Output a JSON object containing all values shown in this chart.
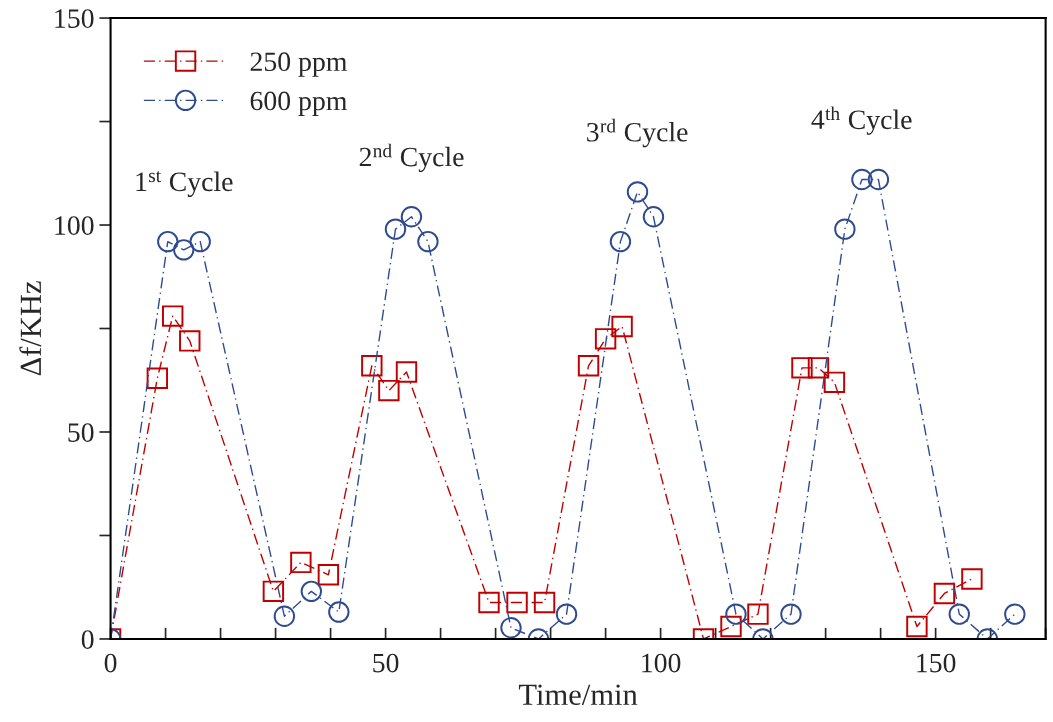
{
  "chart_data": {
    "type": "line",
    "xlabel": "Time/min",
    "ylabel": "Δf/KHz",
    "xlim": [
      0,
      170
    ],
    "ylim": [
      0,
      150
    ],
    "xticks": [
      0,
      {
        "value": 10,
        "label": null
      },
      {
        "value": 20,
        "label": null
      },
      {
        "value": 30,
        "label": null
      },
      {
        "value": 40,
        "label": null
      },
      50,
      {
        "value": 60,
        "label": null
      },
      {
        "value": 70,
        "label": null
      },
      {
        "value": 80,
        "label": null
      },
      {
        "value": 90,
        "label": null
      },
      100,
      {
        "value": 110,
        "label": null
      },
      {
        "value": 120,
        "label": null
      },
      {
        "value": 130,
        "label": null
      },
      {
        "value": 140,
        "label": null
      },
      150,
      {
        "value": 160,
        "label": null
      },
      {
        "value": 170,
        "label": null
      }
    ],
    "yticks": [
      0,
      {
        "value": 25,
        "label": null
      },
      50,
      {
        "value": 75,
        "label": null
      },
      100,
      {
        "value": 125,
        "label": null
      },
      150
    ],
    "grid": false,
    "legend": "top left",
    "line_style": "dashed",
    "series": [
      {
        "name": "250 ppm",
        "color": "#c00000",
        "marker": "square",
        "x": [
          0,
          8.5,
          11.3,
          14.4,
          29.6,
          34.6,
          39.6,
          47.5,
          50.6,
          53.8,
          68.8,
          73.9,
          78.9,
          86.9,
          90.0,
          93.0,
          107.8,
          112.8,
          117.7,
          125.7,
          128.7,
          131.6,
          146.6,
          151.6,
          156.6
        ],
        "values": [
          0,
          63,
          78,
          72,
          11.5,
          18.5,
          15.5,
          66,
          60,
          64.5,
          8.8,
          8.8,
          8.8,
          66,
          72.5,
          75.5,
          0,
          3,
          6,
          65.5,
          65.5,
          62,
          3,
          11,
          14.5
        ]
      },
      {
        "name": "600 ppm",
        "color": "#2f4b8f",
        "marker": "circle",
        "x": [
          0,
          10.4,
          13.3,
          16.3,
          31.6,
          36.5,
          41.5,
          51.8,
          54.7,
          57.7,
          72.8,
          77.8,
          82.9,
          92.7,
          95.8,
          98.7,
          113.7,
          118.6,
          123.7,
          133.5,
          136.6,
          139.6,
          154.3,
          159.4,
          164.4
        ],
        "values": [
          0,
          96,
          94,
          96,
          5.5,
          11.5,
          6.5,
          99,
          102,
          96,
          2.7,
          0,
          6,
          96,
          108,
          102,
          6,
          0,
          6,
          99,
          111,
          111,
          6,
          0,
          6
        ]
      }
    ],
    "annotations": [
      "1$^{st}$ Cycle",
      "2$^{nd}$ Cycle",
      "3$^{rd}$ Cycle",
      "4$^{th}$ Cycle"
    ]
  }
}
